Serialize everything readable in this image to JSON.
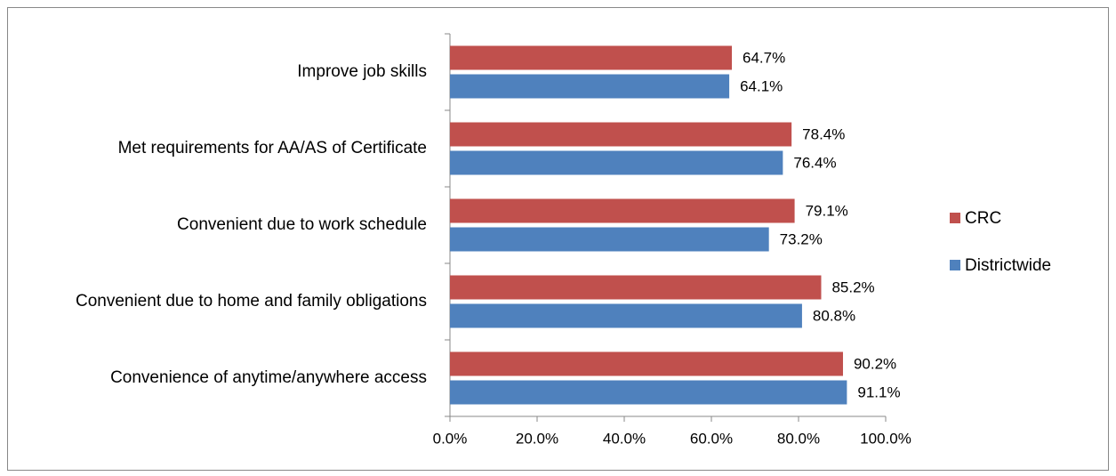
{
  "chart_data": {
    "type": "bar",
    "orientation": "horizontal",
    "categories": [
      "Improve job skills",
      "Met requirements for AA/AS of Certificate",
      "Convenient due to work schedule",
      "Convenient due to home and family obligations",
      "Convenience of anytime/anywhere access"
    ],
    "series": [
      {
        "name": "CRC",
        "color": "#c0504d",
        "values": [
          64.7,
          78.4,
          79.1,
          85.2,
          90.2
        ],
        "value_labels": [
          "64.7%",
          "78.4%",
          "79.1%",
          "85.2%",
          "90.2%"
        ]
      },
      {
        "name": "Districtwide",
        "color": "#4f81bd",
        "values": [
          64.1,
          76.4,
          73.2,
          80.8,
          91.1
        ],
        "value_labels": [
          "64.1%",
          "76.4%",
          "73.2%",
          "80.8%",
          "91.1%"
        ]
      }
    ],
    "xlim": [
      0,
      100
    ],
    "xticks": [
      {
        "value": 0,
        "label": "0.0%"
      },
      {
        "value": 20,
        "label": "20.0%"
      },
      {
        "value": 40,
        "label": "40.0%"
      },
      {
        "value": 60,
        "label": "60.0%"
      },
      {
        "value": 80,
        "label": "80.0%"
      },
      {
        "value": 100,
        "label": "100.0%"
      }
    ],
    "legend": "right"
  }
}
